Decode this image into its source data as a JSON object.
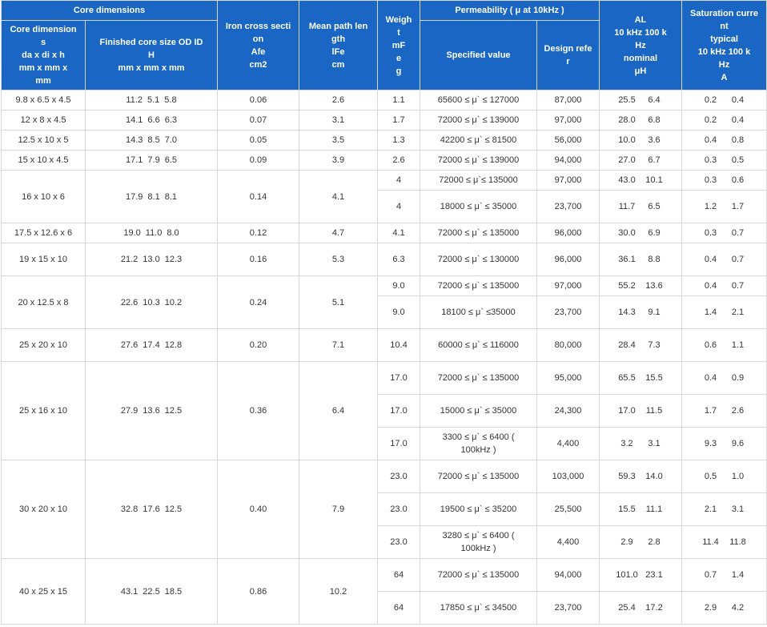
{
  "headers": {
    "core_dimensions_group": "Core dimensions",
    "core_dimensions": "Core dimension\ns\nda x di x h\nmm x mm x\nmm",
    "finished_core_size": "Finished core size OD     ID\nH\nmm x mm x mm",
    "iron_cross_section": "Iron cross secti\non\nAfe\ncm2",
    "mean_path_length": "Mean path len\ngth\nlFe\ncm",
    "weight": "Weigh\nt\nmF\ne\ng",
    "permeability_group": "Permeability ( μ at 10kHz )",
    "specified_value": "Specified value",
    "design_reference": "Design refe\nr",
    "al": "AL\n10 kHz 100 k\nHz\nnominal\nμH",
    "saturation_current": "Saturation curre\nnt\ntypical\n10 kHz 100 k\nHz\nA"
  },
  "cores": [
    {
      "dims": "9.8 x 6.5 x 4.5",
      "finished": [
        "11.2",
        "5.1",
        "5.8"
      ],
      "afe": "0.06",
      "lfe": "2.6",
      "variants": [
        {
          "weight": "1.1",
          "spec": "65600 ≤ μ` ≤ 127000",
          "design": "87,000",
          "al": [
            "25.5",
            "6.4"
          ],
          "sat": [
            "0.2",
            "0.4"
          ]
        }
      ]
    },
    {
      "dims": "12 x 8 x 4.5",
      "finished": [
        "14.1",
        "6.6",
        "6.3"
      ],
      "afe": "0.07",
      "lfe": "3.1",
      "variants": [
        {
          "weight": "1.7",
          "spec": "72000 ≤ μ` ≤ 139000",
          "design": "97,000",
          "al": [
            "28.0",
            "6.8"
          ],
          "sat": [
            "0.2",
            "0.4"
          ]
        }
      ]
    },
    {
      "dims": "12.5 x 10 x 5",
      "finished": [
        "14.3",
        "8.5",
        "7.0"
      ],
      "afe": "0.05",
      "lfe": "3.5",
      "variants": [
        {
          "weight": "1.3",
          "spec": "42200 ≤ μ` ≤ 81500",
          "design": "56,000",
          "al": [
            "10.0",
            "3.6"
          ],
          "sat": [
            "0.4",
            "0.8"
          ]
        }
      ]
    },
    {
      "dims": "15 x 10 x 4.5",
      "finished": [
        "17.1",
        "7.9",
        "6.5"
      ],
      "afe": "0.09",
      "lfe": "3.9",
      "variants": [
        {
          "weight": "2.6",
          "spec": "72000 ≤ μ` ≤ 139000",
          "design": "94,000",
          "al": [
            "27.0",
            "6.7"
          ],
          "sat": [
            "0.3",
            "0.5"
          ]
        }
      ]
    },
    {
      "dims": "16 x 10 x 6",
      "finished": [
        "17.9",
        "8.1",
        "8.1"
      ],
      "afe": "0.14",
      "lfe": "4.1",
      "variants": [
        {
          "weight": "4",
          "spec": "72000 ≤ μ`≤ 135000",
          "design": "97,000",
          "al": [
            "43.0",
            "10.1"
          ],
          "sat": [
            "0.3",
            "0.6"
          ]
        },
        {
          "weight": "4",
          "spec": "18000 ≤ μ` ≤ 35000",
          "design": "23,700",
          "al": [
            "11.7",
            "6.5"
          ],
          "sat": [
            "1.2",
            "1.7"
          ]
        }
      ]
    },
    {
      "dims": "17.5 x 12.6 x 6",
      "finished": [
        "19.0",
        "11.0",
        "8.0"
      ],
      "afe": "0.12",
      "lfe": "4.7",
      "variants": [
        {
          "weight": "4.1",
          "spec": "72000 ≤ μ` ≤ 135000",
          "design": "96,000",
          "al": [
            "30.0",
            "6.9"
          ],
          "sat": [
            "0.3",
            "0.7"
          ]
        }
      ]
    },
    {
      "dims": "19 x 15 x 10",
      "finished": [
        "21.2",
        "13.0",
        "12.3"
      ],
      "afe": "0.16",
      "lfe": "5.3",
      "variants": [
        {
          "weight": "6.3",
          "spec": "72000 ≤ μ` ≤ 130000",
          "design": "96,000",
          "al": [
            "36.1",
            "8.8"
          ],
          "sat": [
            "0.4",
            "0.7"
          ]
        }
      ]
    },
    {
      "dims": "20 x 12.5 x 8",
      "finished": [
        "22.6",
        "10.3",
        "10.2"
      ],
      "afe": "0.24",
      "lfe": "5.1",
      "variants": [
        {
          "weight": "9.0",
          "spec": "72000 ≤ μ` ≤ 135000",
          "design": "97,000",
          "al": [
            "55.2",
            "13.6"
          ],
          "sat": [
            "0.4",
            "0.7"
          ]
        },
        {
          "weight": "9.0",
          "spec": "18100 ≤ μ` ≤35000",
          "design": "23,700",
          "al": [
            "14.3",
            "9.1"
          ],
          "sat": [
            "1.4",
            "2.1"
          ]
        }
      ]
    },
    {
      "dims": "25 x 20 x 10",
      "finished": [
        "27.6",
        "17.4",
        "12.8"
      ],
      "afe": "0.20",
      "lfe": "7.1",
      "variants": [
        {
          "weight": "10.4",
          "spec": "60000 ≤ μ` ≤ 116000",
          "design": "80,000",
          "al": [
            "28.4",
            "7.3"
          ],
          "sat": [
            "0.6",
            "1.1"
          ]
        }
      ]
    },
    {
      "dims": "25 x 16 x 10",
      "finished": [
        "27.9",
        "13.6",
        "12.5"
      ],
      "afe": "0.36",
      "lfe": "6.4",
      "variants": [
        {
          "weight": "17.0",
          "spec": "72000 ≤ μ` ≤ 135000",
          "design": "95,000",
          "al": [
            "65.5",
            "15.5"
          ],
          "sat": [
            "0.4",
            "0.9"
          ]
        },
        {
          "weight": "17.0",
          "spec": "15000 ≤ μ` ≤ 35000",
          "design": "24,300",
          "al": [
            "17.0",
            "11.5"
          ],
          "sat": [
            "1.7",
            "2.6"
          ]
        },
        {
          "weight": "17.0",
          "spec": "3300 ≤ μ` ≤ 6400 (\n100kHz )",
          "design": "4,400",
          "al": [
            "3.2",
            "3.1"
          ],
          "sat": [
            "9.3",
            "9.6"
          ]
        }
      ]
    },
    {
      "dims": "30 x 20 x 10",
      "finished": [
        "32.8",
        "17.6",
        "12.5"
      ],
      "afe": "0.40",
      "lfe": "7.9",
      "variants": [
        {
          "weight": "23.0",
          "spec": "72000 ≤ μ` ≤ 135000",
          "design": "103,000",
          "al": [
            "59.3",
            "14.0"
          ],
          "sat": [
            "0.5",
            "1.0"
          ]
        },
        {
          "weight": "23.0",
          "spec": "19500 ≤ μ` ≤ 35200",
          "design": "25,500",
          "al": [
            "15.5",
            "11.1"
          ],
          "sat": [
            "2.1",
            "3.1"
          ]
        },
        {
          "weight": "23.0",
          "spec": "3280 ≤ μ` ≤ 6400 (\n100kHz )",
          "design": "4,400",
          "al": [
            "2.9",
            "2.8"
          ],
          "sat": [
            "11.4",
            "11.8"
          ]
        }
      ]
    },
    {
      "dims": "40 x 25 x 15",
      "finished": [
        "43.1",
        "22.5",
        "18.5"
      ],
      "afe": "0.86",
      "lfe": "10.2",
      "variants": [
        {
          "weight": "64",
          "spec": "72000 ≤ μ` ≤ 135000",
          "design": "94,000",
          "al": [
            "101.0",
            "23.1"
          ],
          "sat": [
            "0.7",
            "1.4"
          ]
        },
        {
          "weight": "64",
          "spec": "17850 ≤ μ` ≤ 34500",
          "design": "23,700",
          "al": [
            "25.4",
            "17.2"
          ],
          "sat": [
            "2.9",
            "4.2"
          ]
        }
      ]
    }
  ]
}
